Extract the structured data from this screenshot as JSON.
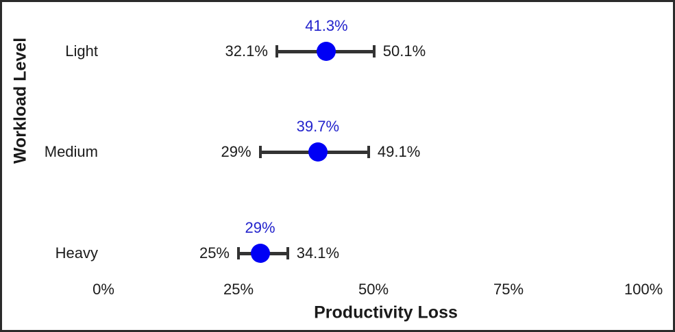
{
  "frame": {
    "background_color": "#ffffff",
    "border_color": "#2b2b2b"
  },
  "chart_data": {
    "type": "scatter",
    "subtype": "horizontal-dot-with-error-bars",
    "title": "",
    "xlabel": "Productivity Loss",
    "ylabel": "Workload Level",
    "xlim": [
      0,
      100
    ],
    "grid": false,
    "legend": false,
    "point_color": "#0000f5",
    "point_label_color": "#2222cc",
    "error_bar_color": "#333333",
    "text_color": "#1a1a1a",
    "x_ticks": [
      {
        "value": 0,
        "label": "0%"
      },
      {
        "value": 25,
        "label": "25%"
      },
      {
        "value": 50,
        "label": "50%"
      },
      {
        "value": 75,
        "label": "75%"
      },
      {
        "value": 100,
        "label": "100%"
      }
    ],
    "rows": [
      {
        "category": "Light",
        "point": 41.3,
        "point_label": "41.3%",
        "low": 32.1,
        "low_label": "32.1%",
        "high": 50.1,
        "high_label": "50.1%"
      },
      {
        "category": "Medium",
        "point": 39.7,
        "point_label": "39.7%",
        "low": 29,
        "low_label": "29%",
        "high": 49.1,
        "high_label": "49.1%"
      },
      {
        "category": "Heavy",
        "point": 29,
        "point_label": "29%",
        "low": 25,
        "low_label": "25%",
        "high": 34.1,
        "high_label": "34.1%"
      }
    ]
  }
}
